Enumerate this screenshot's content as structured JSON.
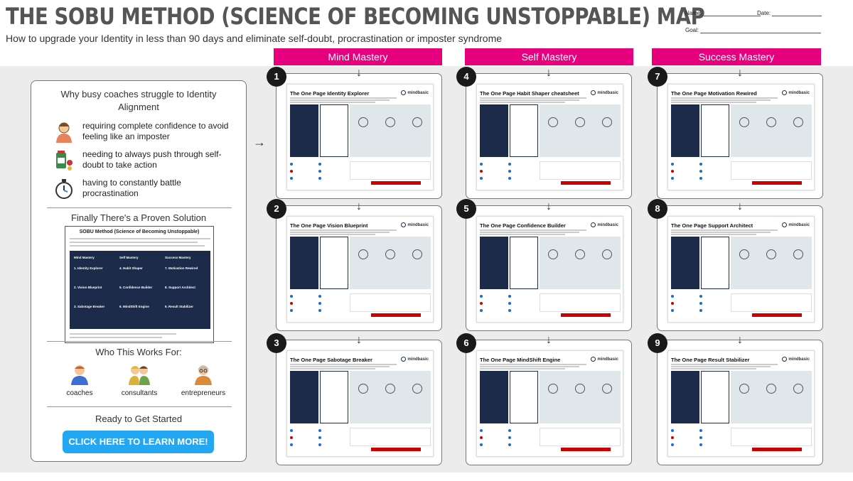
{
  "header": {
    "title": "THE SOBU METHOD (SCIENCE OF BECOMING UNSTOPPABLE) MAP",
    "subtitle": "How to upgrade your Identity in less than 90 days and eliminate self-doubt, procrastination or imposter syndrome",
    "name_label": "Name:",
    "date_label": "Date:",
    "goal_label": "Goal:"
  },
  "columns": [
    "Mind Mastery",
    "Self Mastery",
    "Success Mastery"
  ],
  "left_panel": {
    "heading": "Why busy coaches struggle to Identity Alignment",
    "reasons": [
      {
        "icon": "stressed-person-icon",
        "text": "requiring complete confidence to avoid feeling like an imposter"
      },
      {
        "icon": "pill-bottle-icon",
        "text": "needing to always push through self-doubt to take action"
      },
      {
        "icon": "stopwatch-icon",
        "text": "having to constantly battle procrastination"
      }
    ],
    "solution_heading": "Finally There's a Proven Solution",
    "mini_title": "SOBU Method (Science of Becoming Unstoppable)",
    "mini_columns": [
      {
        "title": "Mind Mastery",
        "items": [
          "1. Identity Explorer",
          "2. Vision Blueprint",
          "3. Sabotage Breaker"
        ]
      },
      {
        "title": "Self Mastery",
        "items": [
          "4. Habit Shaper",
          "5. Confidence Builder",
          "6. MindShift Engine"
        ]
      },
      {
        "title": "Success Mastery",
        "items": [
          "7. Motivation Rewired",
          "8. Support Architect",
          "9. Result Stabilizer"
        ]
      }
    ],
    "who_heading": "Who This Works For:",
    "who": [
      "coaches",
      "consultants",
      "entrepreneurs"
    ],
    "ready_heading": "Ready to Get Started",
    "cta": "CLICK HERE TO LEARN MORE!"
  },
  "cards": [
    {
      "num": "1",
      "title": "The One Page Identity Explorer"
    },
    {
      "num": "2",
      "title": "The One Page Vision Blueprint"
    },
    {
      "num": "3",
      "title": "The One Page Sabotage Breaker"
    },
    {
      "num": "4",
      "title": "The One Page Habit Shaper cheatsheet"
    },
    {
      "num": "5",
      "title": "The One Page Confidence Builder"
    },
    {
      "num": "6",
      "title": "The One Page MindShift Engine"
    },
    {
      "num": "7",
      "title": "The One Page Motivation Rewired"
    },
    {
      "num": "8",
      "title": "The One Page Support Architect"
    },
    {
      "num": "9",
      "title": "The One Page Result Stabilizer"
    }
  ],
  "logo_text": "mindbasic",
  "arrow_right": "→",
  "arrow_down": "↓",
  "colors": {
    "accent": "#e6007e",
    "cta": "#23a7f2",
    "navy": "#1b2b49"
  }
}
